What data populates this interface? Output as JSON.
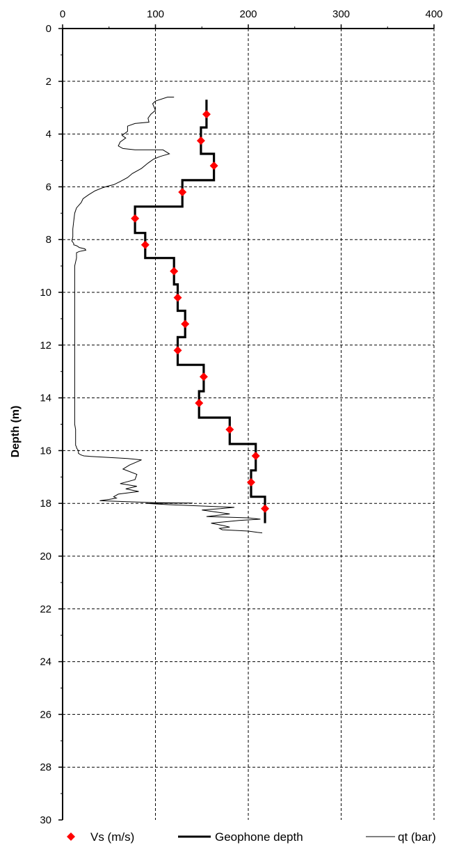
{
  "chart_data": {
    "type": "line",
    "title": "",
    "xlabel": "",
    "ylabel": "Depth (m)",
    "x_axis_position": "top",
    "y_axis_inverted": true,
    "xlim": [
      0,
      400
    ],
    "ylim": [
      0,
      30
    ],
    "x_ticks": [
      "0",
      "100",
      "200",
      "300",
      "400"
    ],
    "y_ticks": [
      "0",
      "2",
      "4",
      "6",
      "8",
      "10",
      "12",
      "14",
      "16",
      "18",
      "20",
      "22",
      "24",
      "26",
      "28",
      "30"
    ],
    "grid": true,
    "legend_position": "bottom",
    "series": [
      {
        "name": "Vs (m/s)",
        "kind": "markers",
        "marker": "diamond",
        "color": "#ff0000",
        "x": [
          155,
          149,
          163,
          129,
          78,
          89,
          120,
          124,
          132,
          124,
          152,
          147,
          180,
          208,
          203,
          218
        ],
        "y": [
          3.25,
          4.25,
          5.2,
          6.2,
          7.2,
          8.2,
          9.2,
          10.2,
          11.2,
          12.2,
          13.2,
          14.2,
          15.2,
          16.2,
          17.2,
          18.2
        ]
      },
      {
        "name": "Geophone depth",
        "kind": "step",
        "color": "#000000",
        "x": [
          155,
          155,
          149,
          149,
          163,
          163,
          129,
          129,
          78,
          78,
          89,
          89,
          120,
          120,
          124,
          124,
          132,
          132,
          124,
          124,
          152,
          152,
          147,
          147,
          180,
          180,
          208,
          208,
          203,
          203,
          218,
          218
        ],
        "y": [
          2.7,
          3.75,
          3.75,
          4.75,
          4.75,
          5.75,
          5.75,
          6.75,
          6.75,
          7.75,
          7.75,
          8.7,
          8.7,
          9.7,
          9.7,
          10.7,
          10.7,
          11.7,
          11.7,
          12.75,
          12.75,
          13.75,
          13.75,
          14.75,
          14.75,
          15.75,
          15.75,
          16.75,
          16.75,
          17.75,
          17.75,
          18.75
        ]
      },
      {
        "name": "qt (bar)",
        "kind": "line",
        "color": "#000000",
        "x": [
          120,
          113,
          100,
          97,
          100,
          95,
          92,
          93,
          78,
          70,
          70,
          68,
          64,
          68,
          62,
          60,
          65,
          78,
          92,
          108,
          115,
          105,
          98,
          92,
          85,
          75,
          70,
          62,
          55,
          48,
          42,
          35,
          28,
          22,
          20,
          15,
          13,
          12,
          11,
          11,
          10,
          11,
          12,
          12,
          14,
          16,
          18,
          24,
          25,
          18,
          15,
          15,
          13,
          13,
          13,
          13,
          13,
          13,
          13,
          13,
          13,
          13,
          13,
          13,
          13,
          14,
          14,
          14,
          14,
          14,
          15,
          15,
          16,
          17,
          17,
          17,
          19,
          21,
          23,
          30,
          40,
          55,
          70,
          85,
          72,
          65,
          80,
          78,
          62,
          80,
          68,
          82,
          60,
          55,
          58,
          50,
          40,
          80,
          98,
          140,
          90,
          115,
          185,
          170,
          150,
          180,
          155,
          200,
          213,
          190,
          160,
          174,
          180,
          169,
          172,
          200,
          210,
          215
        ],
        "y": [
          2.6,
          2.6,
          2.75,
          2.85,
          3.1,
          3.25,
          3.4,
          3.55,
          3.6,
          3.7,
          3.9,
          3.95,
          4.05,
          4.15,
          4.3,
          4.45,
          4.55,
          4.6,
          4.6,
          4.6,
          4.75,
          4.85,
          4.95,
          5.1,
          5.3,
          5.5,
          5.65,
          5.8,
          5.92,
          5.98,
          6.05,
          6.15,
          6.3,
          6.45,
          6.6,
          6.8,
          7.0,
          7.3,
          7.6,
          7.9,
          8.05,
          8.1,
          8.15,
          8.2,
          8.22,
          8.25,
          8.3,
          8.35,
          8.4,
          8.45,
          8.5,
          8.7,
          9.0,
          9.5,
          10.0,
          10.5,
          11.0,
          11.5,
          12.0,
          12.5,
          13.0,
          13.5,
          14.0,
          14.5,
          15.0,
          15.2,
          15.4,
          15.6,
          15.7,
          15.8,
          15.86,
          15.9,
          15.95,
          16.0,
          16.05,
          16.1,
          16.15,
          16.18,
          16.2,
          16.22,
          16.24,
          16.27,
          16.3,
          16.35,
          16.55,
          16.7,
          16.9,
          17.1,
          17.25,
          17.35,
          17.45,
          17.55,
          17.65,
          17.75,
          17.8,
          17.85,
          17.9,
          17.95,
          17.97,
          17.99,
          18.0,
          18.05,
          18.15,
          18.2,
          18.25,
          18.4,
          18.5,
          18.55,
          18.6,
          18.65,
          18.75,
          18.85,
          18.9,
          18.95,
          19.0,
          19.05,
          19.1,
          19.12
        ]
      }
    ]
  }
}
